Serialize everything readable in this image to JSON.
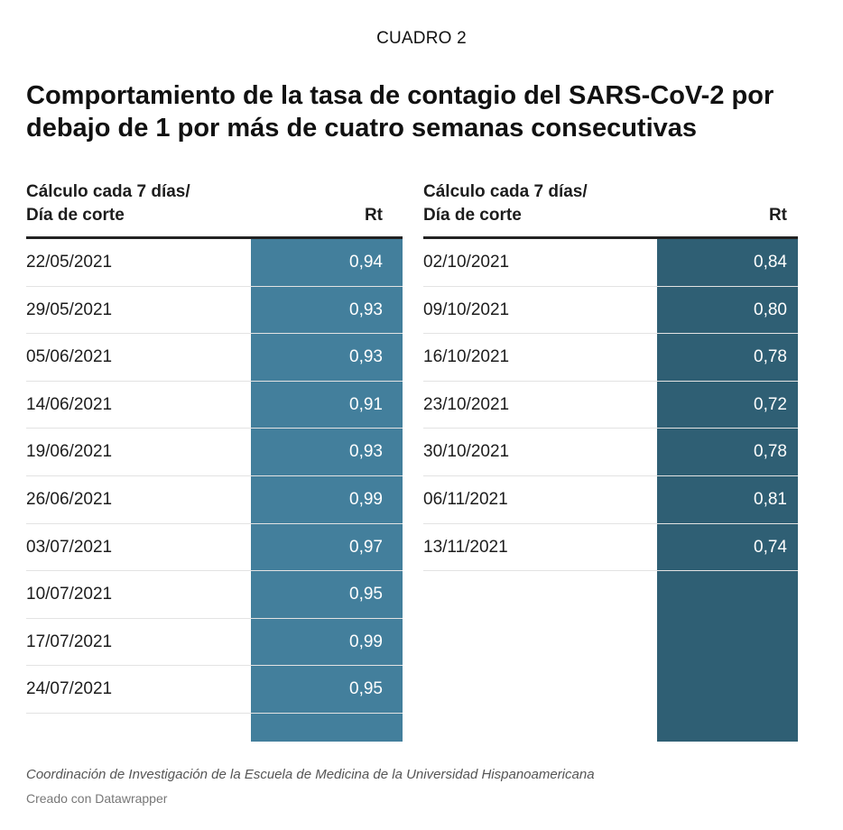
{
  "header_label": "CUADRO 2",
  "title": "Comportamiento de la tasa de contagio del SARS-CoV-2 por debajo de 1 por más de cuatro semanas consecutivas",
  "source": "Coordinación de Investigación de la Escuela de Medicina de la Universidad Hispanoamericana",
  "credit": "Creado con Datawrapper",
  "colors": {
    "left_value_column": "#437f9c",
    "right_value_column": "#2f5f74",
    "header_rule": "#222222",
    "row_divider": "#e3e3e3"
  },
  "chart_data": {
    "type": "table",
    "title": "Comportamiento de la tasa de contagio del SARS-CoV-2 por debajo de 1 por más de cuatro semanas consecutivas",
    "columns": {
      "date_header_line1": "Cálculo cada 7 días/",
      "date_header_line2": "Día de corte",
      "value_header": "Rt"
    },
    "tables": [
      {
        "rows": [
          {
            "date": "22/05/2021",
            "rt": "0,94"
          },
          {
            "date": "29/05/2021",
            "rt": "0,93"
          },
          {
            "date": "05/06/2021",
            "rt": "0,93"
          },
          {
            "date": "14/06/2021",
            "rt": "0,91"
          },
          {
            "date": "19/06/2021",
            "rt": "0,93"
          },
          {
            "date": "26/06/2021",
            "rt": "0,99"
          },
          {
            "date": "03/07/2021",
            "rt": "0,97"
          },
          {
            "date": "10/07/2021",
            "rt": "0,95"
          },
          {
            "date": "17/07/2021",
            "rt": "0,99"
          },
          {
            "date": "24/07/2021",
            "rt": "0,95"
          }
        ]
      },
      {
        "rows": [
          {
            "date": "02/10/2021",
            "rt": "0,84"
          },
          {
            "date": "09/10/2021",
            "rt": "0,80"
          },
          {
            "date": "16/10/2021",
            "rt": "0,78"
          },
          {
            "date": "23/10/2021",
            "rt": "0,72"
          },
          {
            "date": "30/10/2021",
            "rt": "0,78"
          },
          {
            "date": "06/11/2021",
            "rt": "0,81"
          },
          {
            "date": "13/11/2021",
            "rt": "0,74"
          }
        ]
      }
    ]
  }
}
